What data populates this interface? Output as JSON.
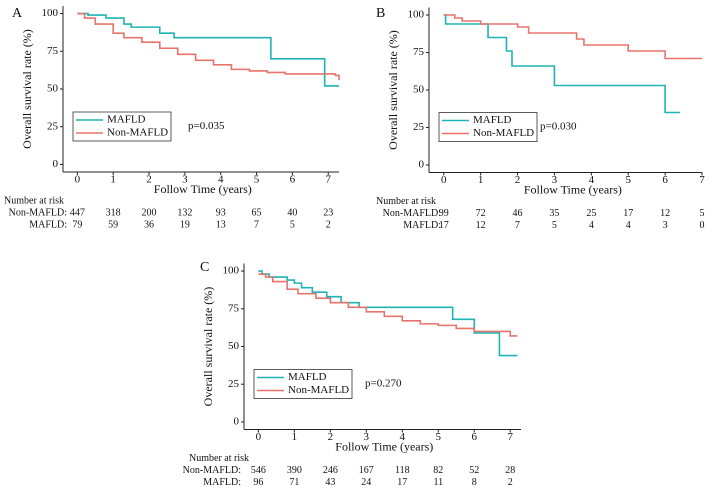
{
  "chart_data": [
    {
      "type": "step",
      "label": "A",
      "ylabel": "Overall survival rate (%)",
      "xlabel": "Follow Time (years)",
      "xlim": [
        -0.4,
        7.3
      ],
      "ylim": [
        -5,
        105
      ],
      "xticks": [
        0,
        1,
        2,
        3,
        4,
        5,
        6,
        7
      ],
      "yticks": [
        0,
        25,
        50,
        75,
        100
      ],
      "legend": "lower left",
      "annotation": "p=0.035",
      "series": [
        {
          "name": "MAFLD",
          "color": "#1fb3b3",
          "x": [
            0,
            0.3,
            0.8,
            1.3,
            1.5,
            2.3,
            2.7,
            5.4,
            6.9,
            7.3
          ],
          "values": [
            100,
            99,
            97,
            93,
            91,
            87,
            84,
            70,
            52,
            52
          ]
        },
        {
          "name": "Non-MAFLD",
          "color": "#e8736c",
          "x": [
            0,
            0.2,
            0.5,
            1,
            1.3,
            1.8,
            2.3,
            2.8,
            3.3,
            3.8,
            4.3,
            4.8,
            5.3,
            5.8,
            6.3,
            6.9,
            7.2,
            7.3
          ],
          "values": [
            100,
            97,
            93,
            87,
            84,
            81,
            77,
            73,
            69,
            66,
            63,
            62,
            61,
            60,
            60,
            60,
            59,
            56
          ]
        }
      ],
      "risk_table": {
        "title": "Number at risk",
        "rows": [
          {
            "name": "Non-MAFLD:",
            "values": [
              447,
              318,
              200,
              132,
              93,
              65,
              40,
              23
            ]
          },
          {
            "name": "MAFLD:",
            "values": [
              79,
              59,
              36,
              19,
              13,
              7,
              5,
              2
            ]
          }
        ]
      }
    },
    {
      "type": "step",
      "label": "B",
      "ylabel": "Overall survival rate (%)",
      "xlabel": "Follow Time (years)",
      "xlim": [
        -0.4,
        7.0
      ],
      "ylim": [
        -5,
        105
      ],
      "xticks": [
        0,
        1,
        2,
        3,
        4,
        5,
        6,
        7
      ],
      "yticks": [
        0,
        25,
        50,
        75,
        100
      ],
      "legend": "lower left",
      "annotation": "p=0.030",
      "series": [
        {
          "name": "MAFLD",
          "color": "#1fb3b3",
          "x": [
            0,
            0.05,
            1.2,
            1.7,
            1.85,
            3.0,
            6.0,
            6.4
          ],
          "values": [
            100,
            94,
            85,
            76,
            66,
            53,
            35,
            35
          ]
        },
        {
          "name": "Non-MAFLD",
          "color": "#e8736c",
          "x": [
            0,
            0.3,
            0.5,
            1.0,
            2.0,
            2.3,
            3.6,
            3.8,
            5.0,
            6.0,
            7.0
          ],
          "values": [
            100,
            98,
            96,
            94,
            92,
            88,
            84,
            80,
            76,
            71,
            71
          ]
        }
      ],
      "risk_table": {
        "title": "Number at risk",
        "rows": [
          {
            "name": "Non-MAFLD:",
            "values": [
              99,
              72,
              46,
              35,
              25,
              17,
              12,
              5
            ]
          },
          {
            "name": "MAFLD:",
            "values": [
              17,
              12,
              7,
              5,
              4,
              4,
              3,
              0
            ]
          }
        ]
      }
    },
    {
      "type": "step",
      "label": "C",
      "ylabel": "Overall survival rate (%)",
      "xlabel": "Follow Time (years)",
      "xlim": [
        -0.4,
        7.3
      ],
      "ylim": [
        -5,
        105
      ],
      "xticks": [
        0,
        1,
        2,
        3,
        4,
        5,
        6,
        7
      ],
      "yticks": [
        0,
        25,
        50,
        75,
        100
      ],
      "legend": "lower left",
      "annotation": "p=0.270",
      "series": [
        {
          "name": "MAFLD",
          "color": "#1fb3b3",
          "x": [
            0,
            0.1,
            0.3,
            0.8,
            1.0,
            1.2,
            1.5,
            1.9,
            2.3,
            2.8,
            5.4,
            6.0,
            6.7,
            7.2
          ],
          "values": [
            100,
            98,
            96,
            94,
            92,
            89,
            86,
            83,
            79,
            76,
            68,
            59,
            44,
            44
          ]
        },
        {
          "name": "Non-MAFLD",
          "color": "#e8736c",
          "x": [
            0,
            0.2,
            0.4,
            0.8,
            1.1,
            1.6,
            2.0,
            2.5,
            3.0,
            3.5,
            4.0,
            4.5,
            5.0,
            5.5,
            6.0,
            6.9,
            7.0,
            7.2
          ],
          "values": [
            98,
            96,
            93,
            88,
            85,
            82,
            79,
            76,
            73,
            70,
            67,
            65,
            64,
            62,
            60,
            60,
            57,
            57
          ]
        }
      ],
      "risk_table": {
        "title": "Number at risk",
        "rows": [
          {
            "name": "Non-MAFLD:",
            "values": [
              546,
              390,
              246,
              167,
              118,
              82,
              52,
              28
            ]
          },
          {
            "name": "MAFLD:",
            "values": [
              96,
              71,
              43,
              24,
              17,
              11,
              8,
              2
            ]
          }
        ]
      }
    }
  ]
}
